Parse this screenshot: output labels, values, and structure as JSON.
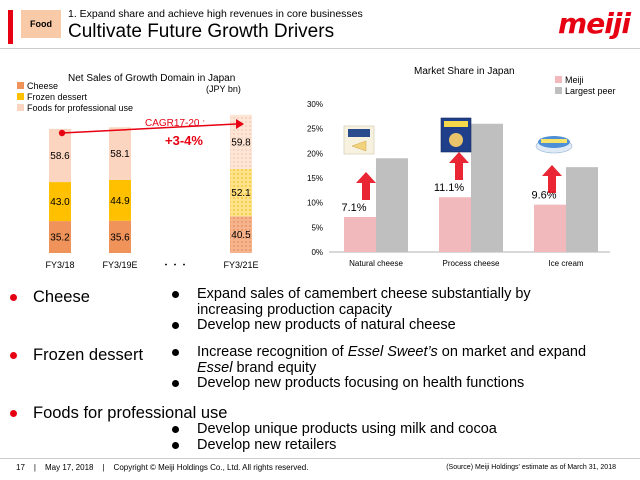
{
  "header": {
    "tag": "Food",
    "subtitle": "1. Expand share and achieve high revenues in core businesses",
    "title": "Cultivate Future Growth Drivers",
    "logo": "meiji"
  },
  "colors": {
    "cheese": "#f0935a",
    "frozen": "#ffc000",
    "professional": "#fbd5bf",
    "meiji": "#f2b9bc",
    "peer": "#bfbfbf",
    "brand_red": "#e60012"
  },
  "left_chart": {
    "title": "Net Sales of Growth Domain in Japan",
    "unit": "(JPY bn)",
    "legend": [
      "Cheese",
      "Frozen dessert",
      "Foods for professional use"
    ],
    "cagr_label": "CAGR17-20 :",
    "cagr_value": "+3-4%",
    "ellipsis": "・・・"
  },
  "right_chart": {
    "title": "Market Share in Japan",
    "legend": [
      "Meiji",
      "Largest peer"
    ]
  },
  "chart_data": [
    {
      "type": "bar",
      "stacked": true,
      "title": "Net Sales of Growth Domain in Japan",
      "ylabel": "(JPY bn)",
      "categories": [
        "FY3/18",
        "FY3/19E",
        "FY3/21E"
      ],
      "series": [
        {
          "name": "Cheese",
          "values": [
            35.2,
            35.6,
            40.5
          ],
          "labels": [
            "35.2",
            "35.6",
            "40.5"
          ]
        },
        {
          "name": "Frozen dessert",
          "values": [
            43.0,
            44.9,
            52.1
          ],
          "labels": [
            "43.0",
            "44.9",
            "52.1"
          ]
        },
        {
          "name": "Foods for professional use",
          "values": [
            58.6,
            58.1,
            59.8
          ],
          "labels": [
            "58.6",
            "58.1",
            "59.8"
          ]
        }
      ],
      "forecast_index": 2
    },
    {
      "type": "bar",
      "title": "Market Share in Japan",
      "categories": [
        "Natural cheese",
        "Process cheese",
        "Ice cream"
      ],
      "yticks": [
        "0%",
        "5%",
        "10%",
        "15%",
        "20%",
        "25%",
        "30%"
      ],
      "ylim": [
        0,
        30
      ],
      "series": [
        {
          "name": "Meiji",
          "values": [
            7.1,
            11.1,
            9.6
          ],
          "labels": [
            "7.1%",
            "11.1%",
            "9.6%"
          ]
        },
        {
          "name": "Largest peer",
          "values": [
            19.0,
            26.0,
            17.2
          ]
        }
      ]
    }
  ],
  "sections": [
    {
      "heading": "Cheese",
      "items": [
        {
          "pre": "Expand sales of camembert cheese substantially by",
          "line2": "increasing production capacity"
        },
        {
          "pre": "Develop new products of natural cheese"
        }
      ]
    },
    {
      "heading": "Frozen dessert",
      "items": [
        {
          "pre": "Increase recognition of ",
          "em": "Essel Sweet’s",
          "post": " on market and expand",
          "line2_em": "Essel",
          "line2": " brand equity"
        },
        {
          "pre": "Develop new products focusing on health functions"
        }
      ]
    },
    {
      "heading": "Foods for professional use",
      "items": [
        {
          "pre": "Develop unique products using milk and cocoa"
        },
        {
          "pre": "Develop new retailers"
        }
      ]
    }
  ],
  "footer": {
    "page": "17",
    "sep": "|",
    "date": "May 17, 2018",
    "copyright": "Copyright © Meiji Holdings Co., Ltd. All rights reserved.",
    "source": "(Source) Meiji Holdings' estimate as of March 31, 2018"
  }
}
